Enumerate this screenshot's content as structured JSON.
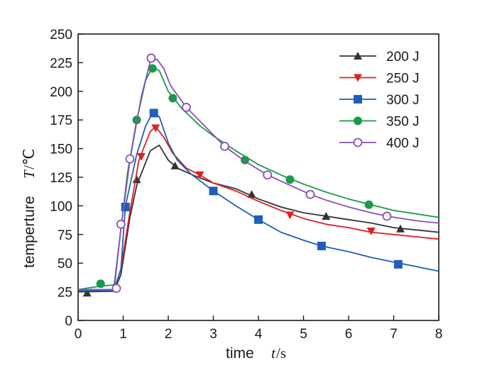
{
  "chart_data": {
    "type": "line",
    "title": "",
    "xlabel": {
      "word": "time",
      "symbol": "t",
      "unit": "/s"
    },
    "ylabel": {
      "word": "temperture",
      "symbol": "T",
      "unit": "/℃"
    },
    "xlim": [
      0,
      8
    ],
    "ylim": [
      0,
      250
    ],
    "x_ticks": [
      0,
      1,
      2,
      3,
      4,
      5,
      6,
      7,
      8
    ],
    "y_ticks": [
      0,
      25,
      50,
      75,
      100,
      125,
      150,
      175,
      200,
      225,
      250
    ],
    "grid": false,
    "legend_position": "top-right",
    "series": [
      {
        "name": "200 J",
        "color": "#333333",
        "marker": "triangle-up",
        "curve": [
          [
            0,
            25
          ],
          [
            0.8,
            25.5
          ],
          [
            0.95,
            40
          ],
          [
            1.15,
            90
          ],
          [
            1.3,
            118
          ],
          [
            1.6,
            148
          ],
          [
            1.8,
            153
          ],
          [
            2.0,
            140
          ],
          [
            2.2,
            133
          ],
          [
            2.6,
            126
          ],
          [
            3.0,
            120
          ],
          [
            3.5,
            115
          ],
          [
            4.0,
            106
          ],
          [
            4.5,
            99
          ],
          [
            5.0,
            94
          ],
          [
            5.5,
            91
          ],
          [
            6.0,
            88
          ],
          [
            6.5,
            85
          ],
          [
            7.0,
            81
          ],
          [
            7.5,
            79
          ],
          [
            8.0,
            77
          ]
        ],
        "markers": [
          [
            0.2,
            24
          ],
          [
            1.3,
            123
          ],
          [
            2.15,
            135
          ],
          [
            3.85,
            110
          ],
          [
            5.5,
            91
          ],
          [
            7.15,
            80
          ]
        ]
      },
      {
        "name": "250 J",
        "color": "#e02020",
        "marker": "triangle-down",
        "curve": [
          [
            0,
            27
          ],
          [
            0.8,
            27
          ],
          [
            0.95,
            45
          ],
          [
            1.15,
            95
          ],
          [
            1.35,
            140
          ],
          [
            1.6,
            165
          ],
          [
            1.72,
            169
          ],
          [
            1.9,
            160
          ],
          [
            2.1,
            146
          ],
          [
            2.4,
            133
          ],
          [
            2.7,
            127
          ],
          [
            3.0,
            120
          ],
          [
            3.5,
            113
          ],
          [
            4.0,
            104
          ],
          [
            4.5,
            96
          ],
          [
            5.0,
            89
          ],
          [
            5.5,
            84
          ],
          [
            6.0,
            81
          ],
          [
            6.5,
            77
          ],
          [
            7.0,
            75
          ],
          [
            7.5,
            73
          ],
          [
            8.0,
            71
          ]
        ],
        "markers": [
          [
            1.4,
            143
          ],
          [
            1.72,
            168
          ],
          [
            2.7,
            127
          ],
          [
            4.7,
            92
          ],
          [
            6.5,
            78
          ]
        ]
      },
      {
        "name": "300 J",
        "color": "#1f5fb8",
        "marker": "square",
        "curve": [
          [
            0,
            26
          ],
          [
            0.8,
            26
          ],
          [
            0.95,
            45
          ],
          [
            1.05,
            100
          ],
          [
            1.3,
            145
          ],
          [
            1.5,
            170
          ],
          [
            1.65,
            181
          ],
          [
            1.8,
            178
          ],
          [
            2.0,
            155
          ],
          [
            2.2,
            140
          ],
          [
            2.5,
            128
          ],
          [
            3.0,
            113
          ],
          [
            3.5,
            100
          ],
          [
            4.0,
            88
          ],
          [
            4.5,
            77
          ],
          [
            5.0,
            70
          ],
          [
            5.4,
            65
          ],
          [
            6.0,
            60
          ],
          [
            6.5,
            55
          ],
          [
            7.0,
            51
          ],
          [
            7.5,
            47
          ],
          [
            8.0,
            43
          ]
        ],
        "markers": [
          [
            1.05,
            99
          ],
          [
            1.68,
            181
          ],
          [
            3.0,
            113
          ],
          [
            4.0,
            88
          ],
          [
            5.4,
            65
          ],
          [
            7.1,
            49
          ]
        ]
      },
      {
        "name": "350 J",
        "color": "#1a9a48",
        "marker": "circle",
        "curve": [
          [
            0,
            27
          ],
          [
            0.5,
            30
          ],
          [
            0.8,
            31
          ],
          [
            0.95,
            80
          ],
          [
            1.1,
            130
          ],
          [
            1.3,
            175
          ],
          [
            1.5,
            210
          ],
          [
            1.65,
            221
          ],
          [
            1.8,
            218
          ],
          [
            2.0,
            200
          ],
          [
            2.3,
            185
          ],
          [
            2.7,
            170
          ],
          [
            3.0,
            161
          ],
          [
            3.5,
            148
          ],
          [
            4.0,
            136
          ],
          [
            4.5,
            127
          ],
          [
            5.0,
            119
          ],
          [
            5.5,
            112
          ],
          [
            6.0,
            106
          ],
          [
            6.5,
            101
          ],
          [
            7.0,
            96
          ],
          [
            7.5,
            93
          ],
          [
            8.0,
            90
          ]
        ],
        "markers": [
          [
            0.5,
            32
          ],
          [
            1.3,
            175
          ],
          [
            1.65,
            220
          ],
          [
            2.1,
            194
          ],
          [
            3.7,
            140
          ],
          [
            4.7,
            123
          ],
          [
            6.45,
            101
          ]
        ]
      },
      {
        "name": "400 J",
        "color": "#8a4fb5",
        "marker": "circle-open",
        "curve": [
          [
            0,
            27
          ],
          [
            0.8,
            27
          ],
          [
            0.95,
            80
          ],
          [
            1.15,
            140
          ],
          [
            1.4,
            195
          ],
          [
            1.6,
            226
          ],
          [
            1.75,
            228
          ],
          [
            1.9,
            220
          ],
          [
            2.05,
            205
          ],
          [
            2.4,
            186
          ],
          [
            2.8,
            170
          ],
          [
            3.25,
            152
          ],
          [
            3.7,
            139
          ],
          [
            4.2,
            127
          ],
          [
            4.7,
            118
          ],
          [
            5.15,
            110
          ],
          [
            5.5,
            105
          ],
          [
            6.0,
            99
          ],
          [
            6.5,
            94
          ],
          [
            6.85,
            91
          ],
          [
            7.5,
            87
          ],
          [
            8.0,
            85
          ]
        ],
        "markers": [
          [
            0.85,
            28
          ],
          [
            0.95,
            84
          ],
          [
            1.15,
            141
          ],
          [
            1.62,
            229
          ],
          [
            2.4,
            186
          ],
          [
            3.25,
            152
          ],
          [
            4.2,
            127
          ],
          [
            5.15,
            110
          ],
          [
            6.85,
            91
          ]
        ]
      }
    ]
  }
}
